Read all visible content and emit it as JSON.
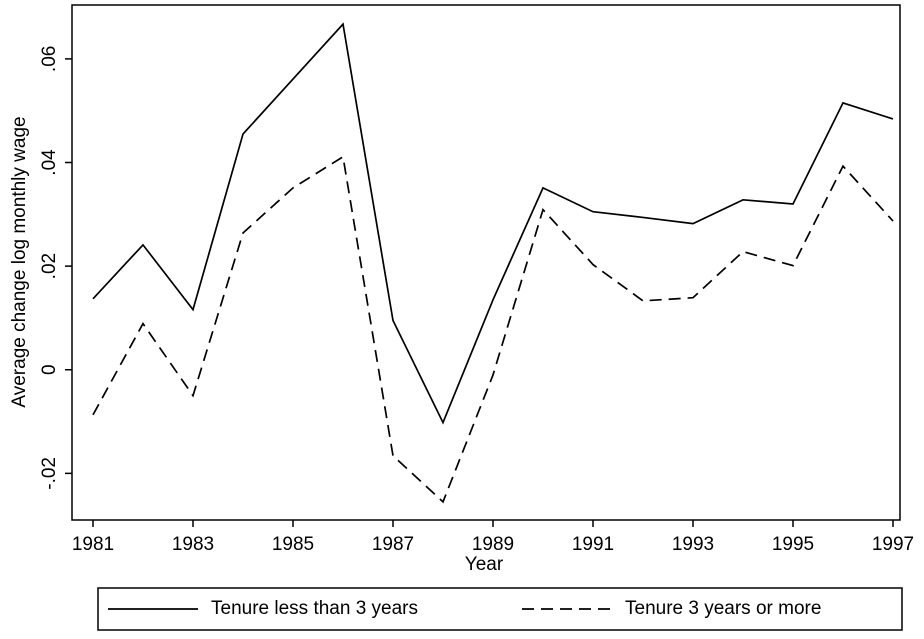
{
  "chart_data": {
    "type": "line",
    "xlabel": "Year",
    "ylabel": "Average change log monthly wage",
    "x": [
      1981,
      1982,
      1983,
      1984,
      1985,
      1986,
      1987,
      1988,
      1989,
      1990,
      1991,
      1992,
      1993,
      1994,
      1995,
      1996,
      1997
    ],
    "series": [
      {
        "name": "Tenure less than 3 years",
        "color": "#000000",
        "linestyle": "solid",
        "values": [
          0.0137,
          0.0241,
          0.0116,
          0.0455,
          0.0561,
          0.0667,
          0.0095,
          -0.0102,
          0.0135,
          0.0351,
          0.0305,
          0.0294,
          0.0282,
          0.0328,
          0.032,
          0.0515,
          0.0484
        ]
      },
      {
        "name": "Tenure 3 years or more",
        "color": "#000000",
        "linestyle": "dashed",
        "values": [
          -0.0087,
          0.0089,
          -0.005,
          0.0264,
          0.0351,
          0.0411,
          -0.0166,
          -0.0255,
          -0.001,
          0.0309,
          0.0203,
          0.0133,
          0.0139,
          0.0228,
          0.0201,
          0.0393,
          0.0287
        ]
      }
    ],
    "xlim": [
      1980.58,
      1997.14
    ],
    "xticks": [
      1981,
      1983,
      1985,
      1987,
      1989,
      1991,
      1993,
      1995,
      1997
    ],
    "ylim": [
      -0.029,
      0.0704
    ],
    "yticks": [
      {
        "value": -0.02,
        "label": "-.02"
      },
      {
        "value": 0,
        "label": "0"
      },
      {
        "value": 0.02,
        "label": ".02"
      },
      {
        "value": 0.04,
        "label": ".04"
      },
      {
        "value": 0.06,
        "label": ".06"
      }
    ],
    "grid": false,
    "legend": "bottom"
  }
}
